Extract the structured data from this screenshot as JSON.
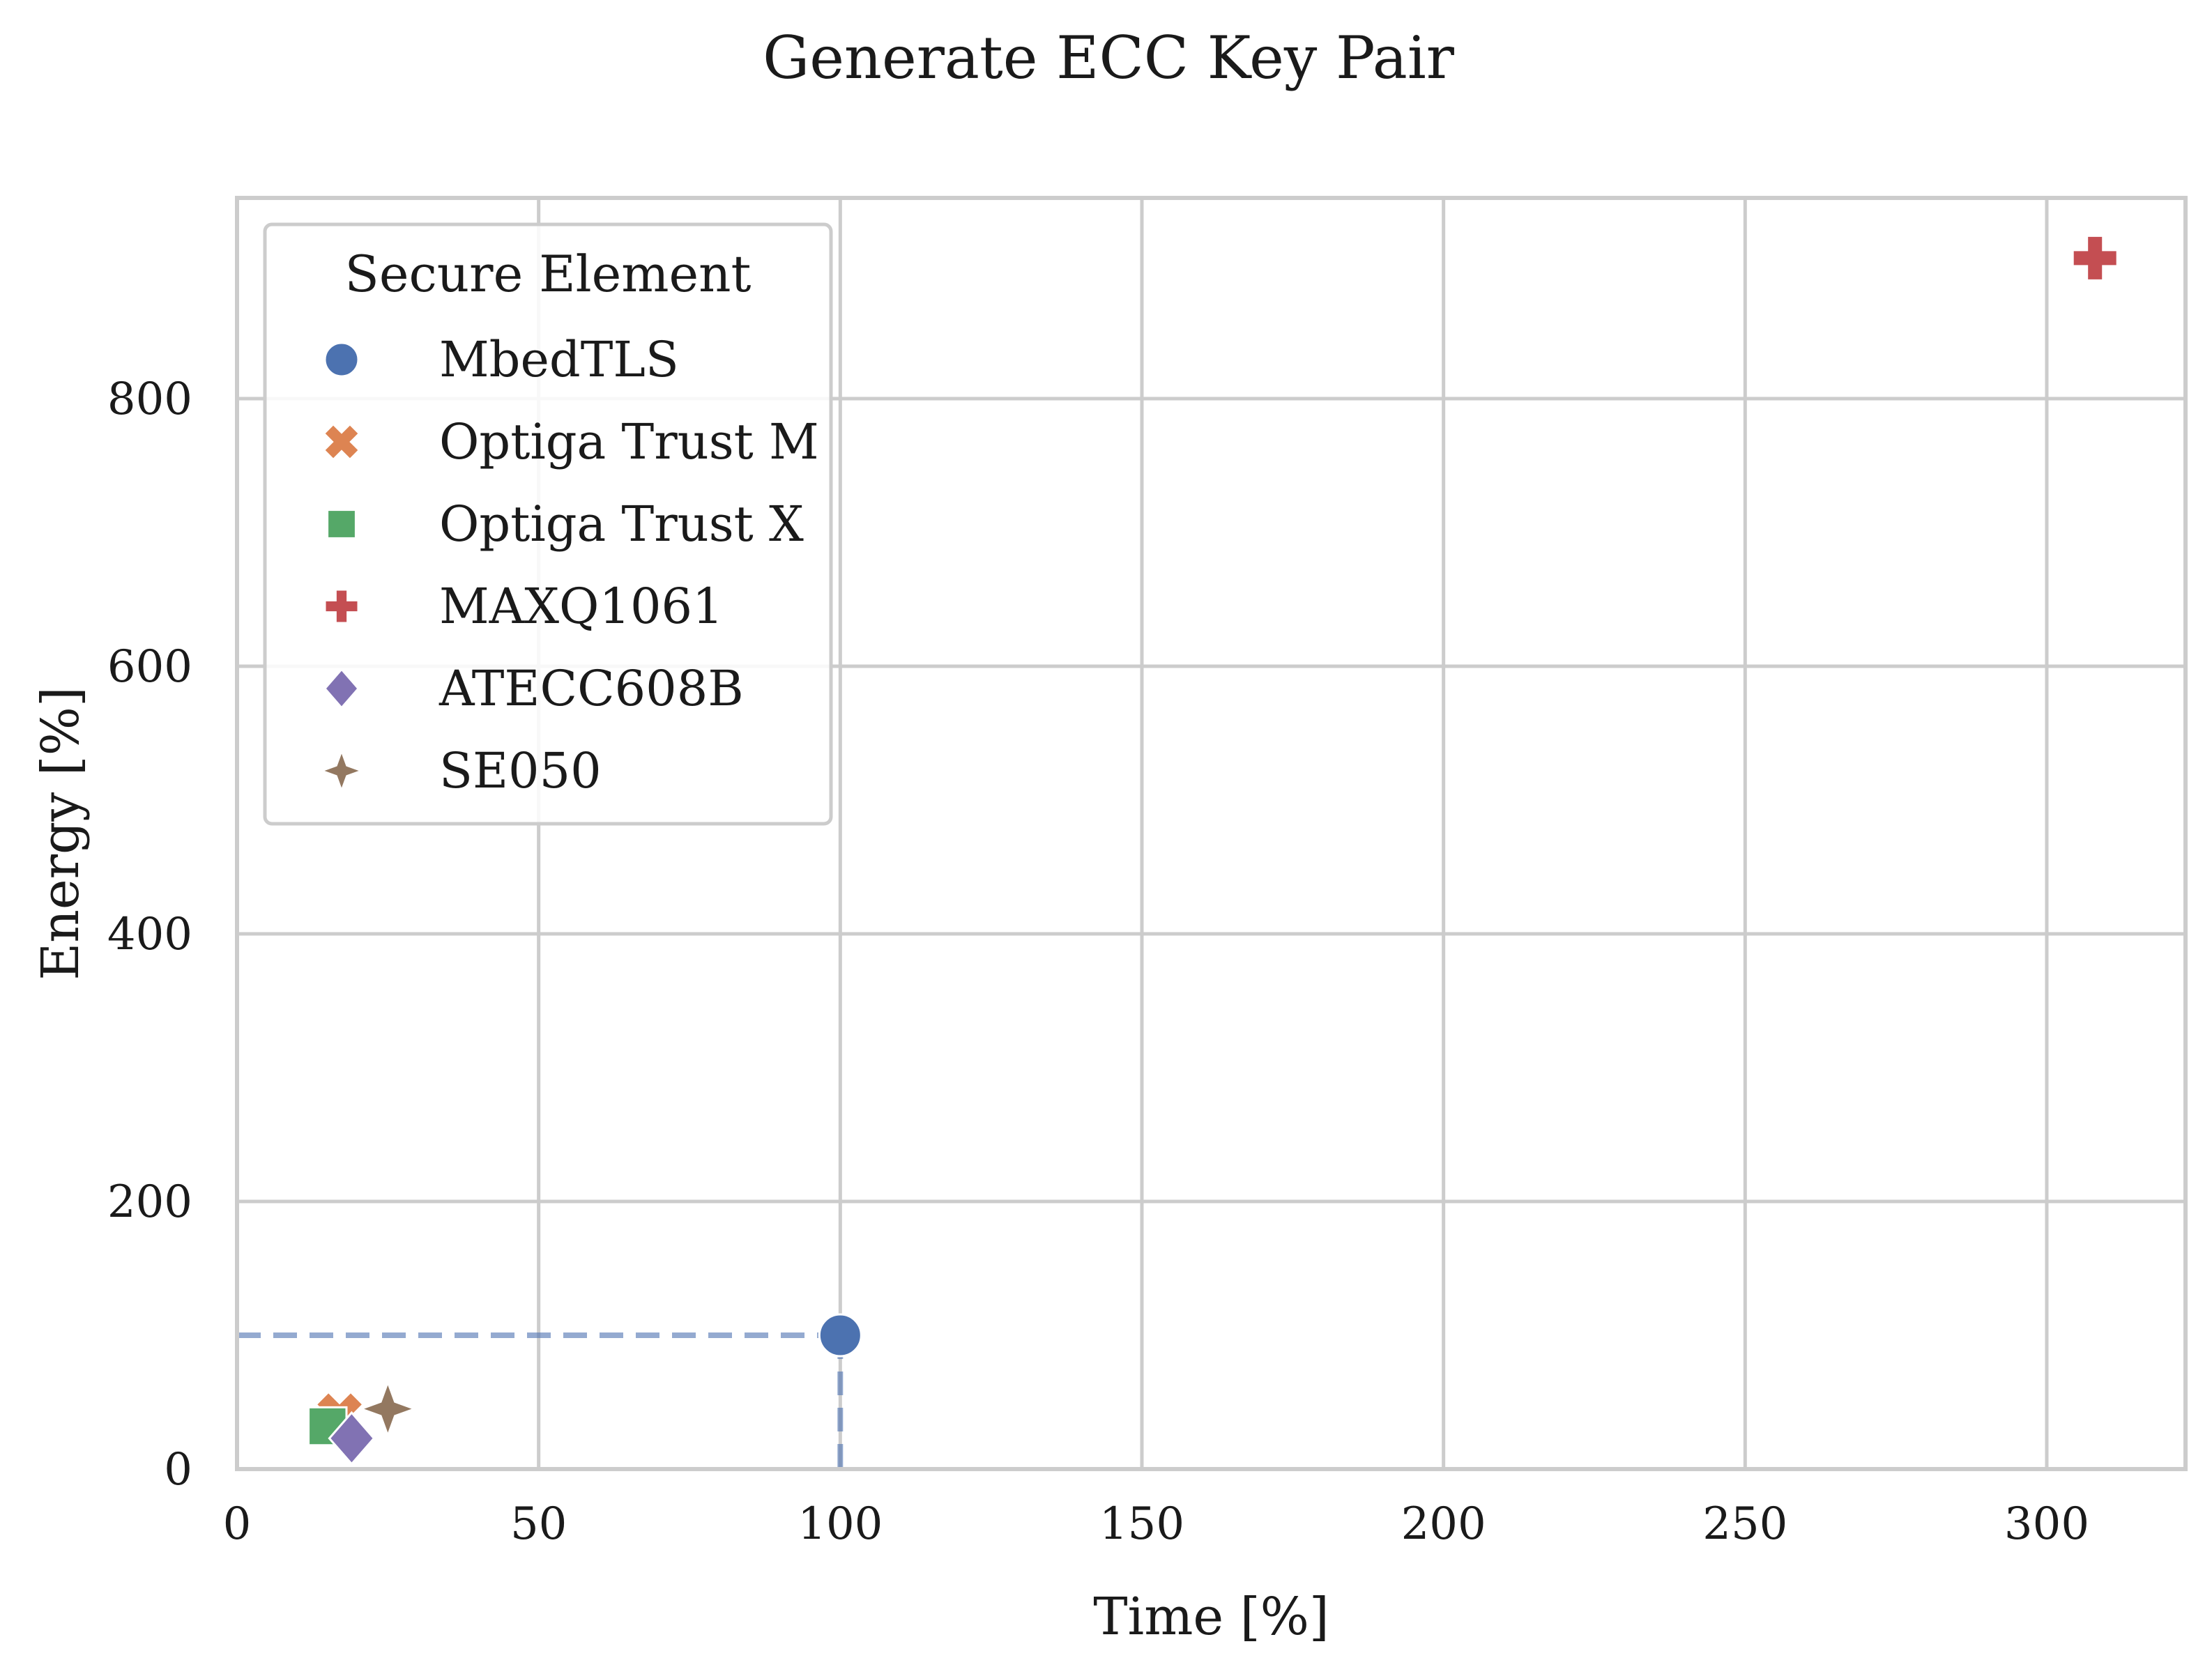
{
  "chart_data": {
    "type": "scatter",
    "title": "Generate ECC Key Pair",
    "xlabel": "Time [%]",
    "ylabel": "Energy [%]",
    "xlim": [
      0,
      323
    ],
    "ylim": [
      0,
      950
    ],
    "xticks": [
      0,
      50,
      100,
      150,
      200,
      250,
      300
    ],
    "yticks": [
      0,
      200,
      400,
      600,
      800
    ],
    "grid": true,
    "legend": {
      "title": "Secure Element",
      "position": "top-left"
    },
    "reference": {
      "x": 100,
      "y": 100,
      "style": "dashed"
    },
    "series": [
      {
        "name": "MbedTLS",
        "marker": "circle",
        "color": "#4c72b0",
        "x": 100,
        "y": 100
      },
      {
        "name": "Optiga Trust M",
        "marker": "x",
        "color": "#dd8452",
        "x": 17,
        "y": 40
      },
      {
        "name": "Optiga Trust X",
        "marker": "square",
        "color": "#55a868",
        "x": 15,
        "y": 32
      },
      {
        "name": "MAXQ1061",
        "marker": "plus",
        "color": "#c44e52",
        "x": 308,
        "y": 905
      },
      {
        "name": "ATECC608B",
        "marker": "diamond",
        "color": "#8172b3",
        "x": 19,
        "y": 23
      },
      {
        "name": "SE050",
        "marker": "star4",
        "color": "#937860",
        "x": 25,
        "y": 45
      }
    ]
  }
}
